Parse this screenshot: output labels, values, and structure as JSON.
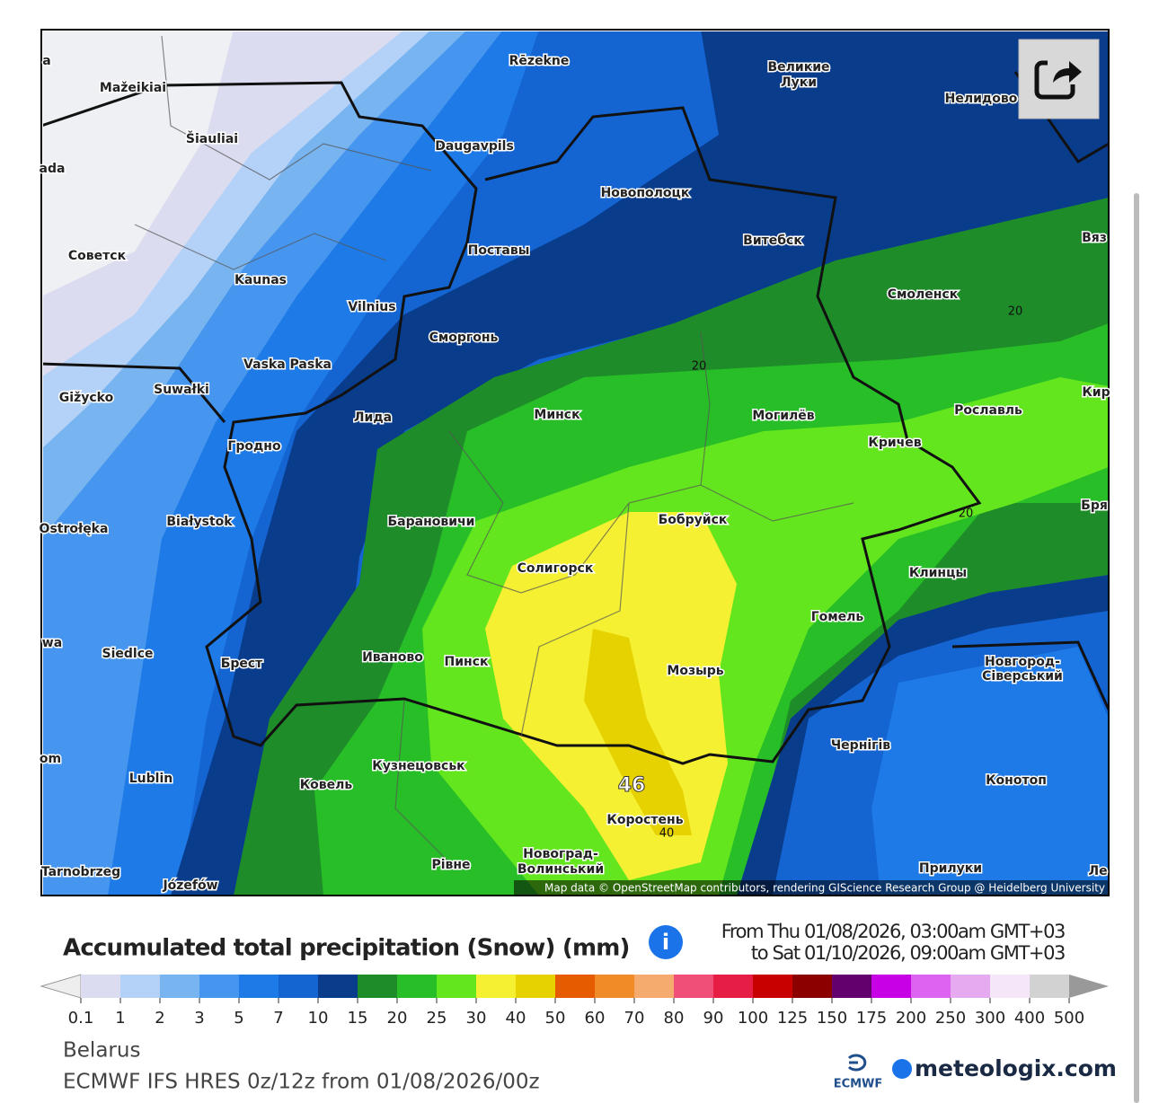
{
  "map": {
    "labels": [
      "Rēzekne",
      "Великие",
      "Луки",
      "Нелидово",
      "Mažeikiai",
      "Šiauliai",
      "Daugavpils",
      "Новополоцк",
      "Витебск",
      "Вяз",
      "Советск",
      "Поставы",
      "Kaunas",
      "Смоленск",
      "Vilnius",
      "Сморгонь",
      "Vaska Paska",
      "Gižycko",
      "Suwałki",
      "Кир",
      "Лида",
      "Минск",
      "Могилёв",
      "Рославль",
      "Гродно",
      "Кричев",
      "Ostrołęka",
      "Białystok",
      "Барановичи",
      "Бобруйск",
      "Бря",
      "Солигорск",
      "Клинцы",
      "Гомель",
      "wa",
      "Siedlce",
      "Брест",
      "Иваново",
      "Пинск",
      "Мозырь",
      "Новгород-",
      "Сіверський",
      "Чернігів",
      "om",
      "Кузнецовськ",
      "Lublin",
      "Ковель",
      "Конотоп",
      "Коростень",
      "Новоград-",
      "Волинський",
      "Рівне",
      "Прилуки",
      "Tarnobrzeg",
      "Józefów",
      "Ле",
      "ada",
      "a"
    ],
    "contour_labels": [
      20,
      20,
      20,
      46,
      40
    ],
    "attribution": "Map data © OpenStreetMap contributors, rendering GIScience Research Group @ Heidelberg University"
  },
  "legend": {
    "title": "Accumulated total precipitation (Snow) (mm)",
    "period_from": "From Thu 01/08/2026, 03:00am GMT+03",
    "period_to": "to Sat 01/10/2026, 09:00am GMT+03",
    "colors": [
      "#dcdcf0",
      "#b4d2f8",
      "#78b4f0",
      "#4696f0",
      "#1e7ae6",
      "#1464d2",
      "#0a3c8c",
      "#1e8c28",
      "#28be28",
      "#64e61e",
      "#f5f032",
      "#e6d200",
      "#e65a00",
      "#f08c28",
      "#f5aa6e",
      "#f05078",
      "#e61e46",
      "#c80000",
      "#8c0000",
      "#64006e",
      "#c800e6",
      "#dc64f0",
      "#e6aaf0",
      "#f5e6fa",
      "#d2d2d2"
    ],
    "labels": [
      0.1,
      1,
      2,
      3,
      5,
      7,
      10,
      15,
      20,
      25,
      30,
      40,
      50,
      60,
      70,
      80,
      90,
      100,
      125,
      150,
      175,
      200,
      250,
      300,
      400,
      500
    ]
  },
  "footer": {
    "region": "Belarus",
    "model": "ECMWF IFS HRES 0z/12z from 01/08/2026/00z",
    "ecmwf": "ECMWF",
    "brand": "meteologix.com"
  }
}
